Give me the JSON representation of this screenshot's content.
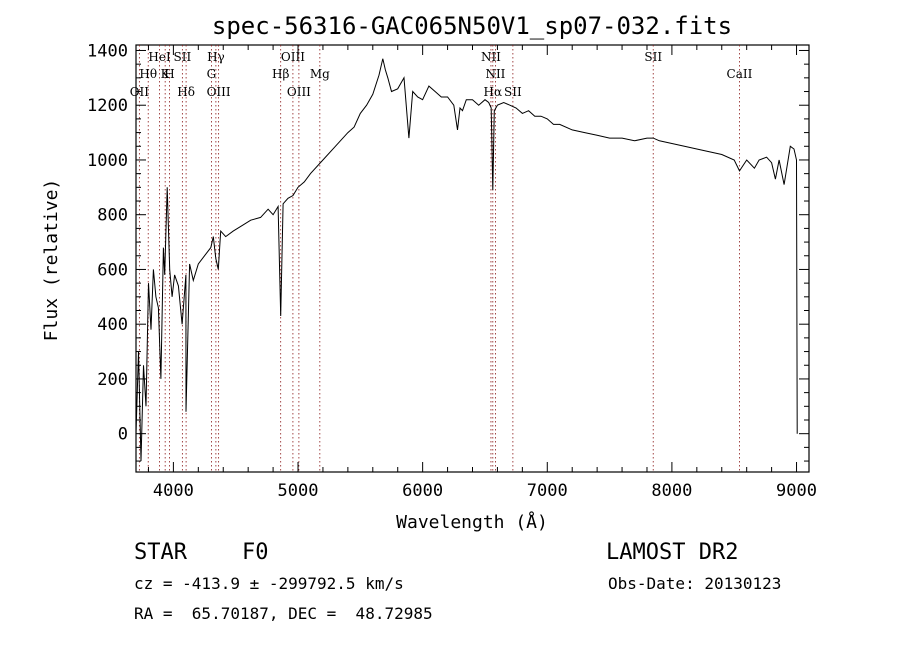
{
  "chart_data": {
    "type": "line",
    "title": "spec-56316-GAC065N50V1_sp07-032.fits",
    "xlabel": "Wavelength (Å)",
    "ylabel": "Flux (relative)",
    "xlim": [
      3700,
      9100
    ],
    "ylim": [
      -140,
      1420
    ],
    "x_ticks": [
      4000,
      5000,
      6000,
      7000,
      8000,
      9000
    ],
    "y_ticks": [
      0,
      200,
      400,
      600,
      800,
      1000,
      1200,
      1400
    ],
    "grid": false,
    "series": [
      {
        "x": [
          3700,
          3720,
          3740,
          3760,
          3780,
          3800,
          3820,
          3840,
          3860,
          3880,
          3900,
          3920,
          3930,
          3950,
          3970,
          3990,
          4010,
          4040,
          4070,
          4100,
          4101,
          4130,
          4160,
          4200,
          4250,
          4300,
          4320,
          4340,
          4360,
          4380,
          4420,
          4480,
          4550,
          4620,
          4700,
          4760,
          4800,
          4840,
          4861,
          4880,
          4920,
          4960,
          5000,
          5050,
          5100,
          5200,
          5300,
          5400,
          5450,
          5500,
          5550,
          5600,
          5650,
          5680,
          5700,
          5720,
          5750,
          5800,
          5850,
          5890,
          5920,
          5960,
          6000,
          6050,
          6100,
          6150,
          6200,
          6250,
          6280,
          6300,
          6320,
          6350,
          6400,
          6450,
          6500,
          6530,
          6550,
          6563,
          6575,
          6600,
          6650,
          6700,
          6750,
          6800,
          6850,
          6900,
          6950,
          7000,
          7050,
          7100,
          7200,
          7300,
          7400,
          7500,
          7600,
          7700,
          7800,
          7850,
          7900,
          8000,
          8100,
          8200,
          8300,
          8400,
          8500,
          8542,
          8600,
          8662,
          8700,
          8760,
          8800,
          8830,
          8860,
          8900,
          8950,
          8980,
          9000,
          9005
        ],
        "y": [
          0,
          300,
          -100,
          250,
          100,
          550,
          380,
          600,
          500,
          460,
          200,
          680,
          580,
          900,
          600,
          500,
          580,
          540,
          400,
          580,
          80,
          620,
          560,
          620,
          650,
          680,
          720,
          640,
          600,
          740,
          720,
          740,
          760,
          780,
          790,
          820,
          800,
          830,
          430,
          840,
          860,
          870,
          900,
          920,
          950,
          1000,
          1050,
          1100,
          1120,
          1170,
          1200,
          1240,
          1310,
          1370,
          1330,
          1300,
          1250,
          1260,
          1300,
          1080,
          1250,
          1230,
          1220,
          1270,
          1250,
          1230,
          1230,
          1200,
          1110,
          1190,
          1180,
          1220,
          1220,
          1200,
          1220,
          1210,
          1190,
          890,
          1180,
          1200,
          1210,
          1200,
          1190,
          1170,
          1180,
          1160,
          1160,
          1150,
          1130,
          1130,
          1110,
          1100,
          1090,
          1080,
          1080,
          1070,
          1080,
          1080,
          1070,
          1060,
          1050,
          1040,
          1030,
          1020,
          1000,
          960,
          1000,
          970,
          1000,
          1010,
          990,
          930,
          1000,
          910,
          1050,
          1040,
          1000,
          0
        ]
      }
    ],
    "line_markers": [
      {
        "label": "OII",
        "x": 3727,
        "row": 3
      },
      {
        "label": "Hθ",
        "x": 3798,
        "row": 2
      },
      {
        "label": "HeI",
        "x": 3889,
        "row": 1
      },
      {
        "label": "K",
        "x": 3934,
        "row": 2
      },
      {
        "label": "H",
        "x": 3969,
        "row": 2
      },
      {
        "label": "SII",
        "x": 4072,
        "row": 1
      },
      {
        "label": "Hδ",
        "x": 4102,
        "row": 3
      },
      {
        "label": "Hγ",
        "x": 4341,
        "row": 1
      },
      {
        "label": "G",
        "x": 4305,
        "row": 2
      },
      {
        "label": "OIII",
        "x": 4363,
        "row": 3
      },
      {
        "label": "Hβ",
        "x": 4861,
        "row": 2
      },
      {
        "label": "OIII",
        "x": 4959,
        "row": 1
      },
      {
        "label": "OIII",
        "x": 5007,
        "row": 3
      },
      {
        "label": "Mg",
        "x": 5175,
        "row": 2
      },
      {
        "label": "NII",
        "x": 6548,
        "row": 1
      },
      {
        "label": "NII",
        "x": 6584,
        "row": 2
      },
      {
        "label": "Hα",
        "x": 6563,
        "row": 3
      },
      {
        "label": "SII",
        "x": 6724,
        "row": 3
      },
      {
        "label": "SII",
        "x": 7850,
        "row": 1
      },
      {
        "label": "CaII",
        "x": 8542,
        "row": 2
      }
    ]
  },
  "info": {
    "object_class": "STAR",
    "subclass": "F0",
    "survey": "LAMOST DR2",
    "cz_text": "cz = -413.9 ± -299792.5 km/s",
    "obs_date": "Obs-Date: 20130123",
    "coords": "RA =  65.70187, DEC =  48.72985"
  },
  "colors": {
    "spectrum": "#000000",
    "marker_line": "#8b1a1a",
    "text": "#000000"
  }
}
